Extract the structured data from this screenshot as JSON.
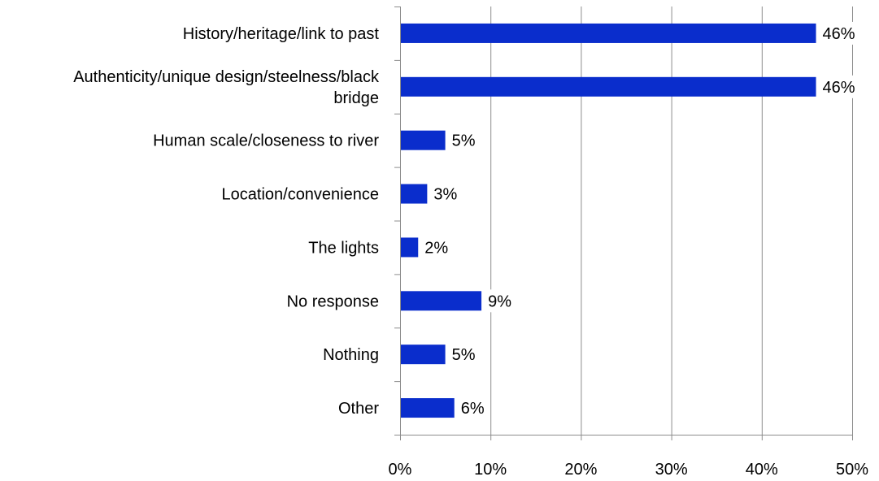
{
  "chart_data": {
    "type": "bar",
    "orientation": "horizontal",
    "categories": [
      [
        "History/heritage/link to past"
      ],
      [
        "Authenticity/unique design/steelness/black",
        "bridge"
      ],
      [
        "Human scale/closeness to river"
      ],
      [
        "Location/convenience"
      ],
      [
        "The lights"
      ],
      [
        "No response"
      ],
      [
        "Nothing"
      ],
      [
        "Other"
      ]
    ],
    "series": [
      {
        "values": [
          46,
          46,
          5,
          3,
          2,
          9,
          5,
          6
        ],
        "data_labels": [
          "46%",
          "46%",
          "5%",
          "3%",
          "2%",
          "9%",
          "5%",
          "6%"
        ]
      }
    ],
    "xlim": [
      0,
      50
    ],
    "xticks": [
      0,
      10,
      20,
      30,
      40,
      50
    ],
    "xtick_labels": [
      "0%",
      "10%",
      "20%",
      "30%",
      "40%",
      "50%"
    ],
    "title": "",
    "xlabel": "",
    "ylabel": "",
    "grid": "vertical",
    "legend": "none",
    "colors": {
      "bar": "#0A2DCC",
      "grid": "#8C8C8C",
      "axis": "#8C8C8C",
      "text": "#000000"
    }
  }
}
